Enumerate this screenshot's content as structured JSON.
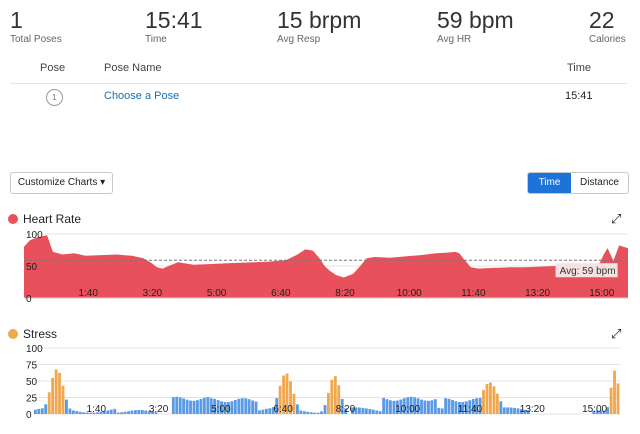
{
  "stats": [
    {
      "value": "1",
      "label": "Total Poses"
    },
    {
      "value": "15:41",
      "label": "Time"
    },
    {
      "value": "15 brpm",
      "label": "Avg Resp"
    },
    {
      "value": "59 bpm",
      "label": "Avg HR"
    },
    {
      "value": "22",
      "label": "Calories"
    }
  ],
  "table": {
    "headers": {
      "pose": "Pose",
      "pose_name": "Pose Name",
      "time": "Time"
    },
    "rows": [
      {
        "index": "1",
        "name": "Choose a Pose",
        "time": "15:41"
      }
    ]
  },
  "controls": {
    "customize": "Customize Charts ▾",
    "toggle_time": "Time",
    "toggle_distance": "Distance"
  },
  "colors": {
    "heart": "#e8505b",
    "stress_low": "#5b9be6",
    "stress_high": "#f0a850"
  },
  "chart_data": [
    {
      "type": "area",
      "title": "Heart Rate",
      "y_ticks": [
        "100",
        "50",
        "0"
      ],
      "ylim": [
        0,
        100
      ],
      "x_ticks": [
        "1:40",
        "3:20",
        "5:00",
        "6:40",
        "8:20",
        "10:00",
        "11:40",
        "13:20",
        "15:00"
      ],
      "x_range_min": [
        0,
        15.68
      ],
      "annotation": "Avg: 59 bpm",
      "avg": 59,
      "x": [
        0,
        0.15,
        0.35,
        0.6,
        0.75,
        1.0,
        1.3,
        1.6,
        2.0,
        2.4,
        2.8,
        3.1,
        3.3,
        3.45,
        3.6,
        3.75,
        4.0,
        4.4,
        4.8,
        5.2,
        5.6,
        6.0,
        6.4,
        6.8,
        7.1,
        7.3,
        7.5,
        7.7,
        7.8,
        7.95,
        8.1,
        8.3,
        8.55,
        8.7,
        8.9,
        9.1,
        9.5,
        9.9,
        10.3,
        10.7,
        11.0,
        11.2,
        11.3,
        11.4,
        11.5,
        11.6,
        11.8,
        12.2,
        12.6,
        13.0,
        13.4,
        13.8,
        14.2,
        14.6,
        14.9,
        15.05,
        15.15,
        15.3,
        15.45,
        15.68
      ],
      "values": [
        80,
        90,
        95,
        98,
        72,
        68,
        70,
        66,
        67,
        68,
        66,
        62,
        55,
        48,
        46,
        50,
        56,
        52,
        53,
        54,
        55,
        56,
        57,
        59,
        68,
        76,
        74,
        60,
        50,
        42,
        36,
        32,
        38,
        48,
        62,
        64,
        63,
        65,
        67,
        70,
        71,
        72,
        70,
        62,
        55,
        48,
        46,
        47,
        48,
        48,
        49,
        50,
        51,
        50,
        49,
        68,
        78,
        58,
        82,
        78
      ]
    },
    {
      "type": "bar",
      "title": "Stress",
      "y_ticks": [
        "100",
        "75",
        "50",
        "25",
        "0"
      ],
      "ylim": [
        0,
        100
      ],
      "x_ticks": [
        "1:40",
        "3:20",
        "5:00",
        "6:40",
        "8:20",
        "10:00",
        "11:40",
        "13:20",
        "15:00"
      ],
      "x_range_min": [
        0,
        15.68
      ],
      "low_high_threshold": 26
    }
  ]
}
